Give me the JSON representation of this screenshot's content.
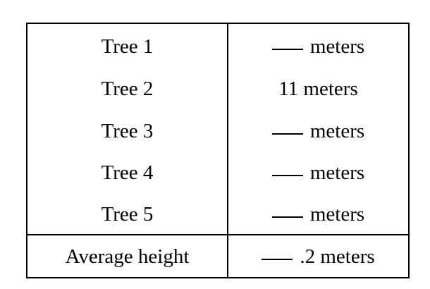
{
  "table": {
    "rows": [
      [
        "Tree 1",
        "meters"
      ],
      [
        "Tree 2",
        "11 meters"
      ],
      [
        "Tree 3",
        "meters"
      ],
      [
        "Tree 4",
        "meters"
      ],
      [
        "Tree 5",
        "meters"
      ]
    ],
    "footer": [
      "Average height",
      ".2 meters"
    ]
  }
}
